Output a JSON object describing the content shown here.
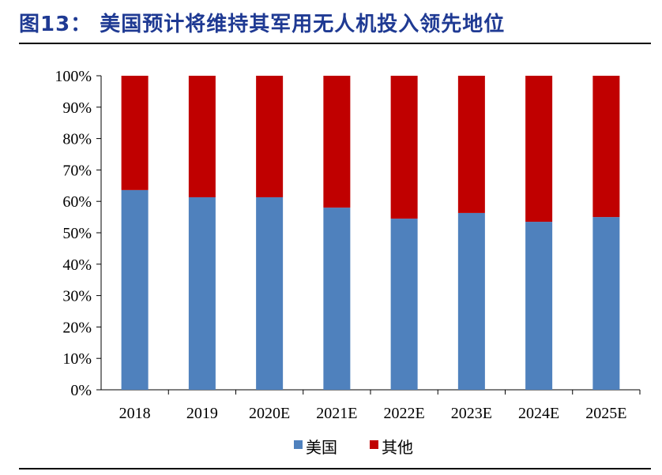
{
  "title": "图13： 美国预计将维持其军用无人机投入领先地位",
  "chart_data": {
    "type": "bar",
    "stacked": true,
    "categories": [
      "2018",
      "2019",
      "2020E",
      "2021E",
      "2022E",
      "2023E",
      "2024E",
      "2025E"
    ],
    "series": [
      {
        "name": "美国",
        "color": "#4f81bd",
        "values": [
          63.6,
          61.3,
          61.3,
          58.0,
          54.5,
          56.3,
          53.5,
          55.0
        ]
      },
      {
        "name": "其他",
        "color": "#c00000",
        "values": [
          36.4,
          38.7,
          38.7,
          42.0,
          45.5,
          43.7,
          46.5,
          45.0
        ]
      }
    ],
    "ylim": [
      0,
      100
    ],
    "yticks": [
      "0%",
      "10%",
      "20%",
      "30%",
      "40%",
      "50%",
      "60%",
      "70%",
      "80%",
      "90%",
      "100%"
    ],
    "grid": false,
    "legend": "bottom"
  }
}
